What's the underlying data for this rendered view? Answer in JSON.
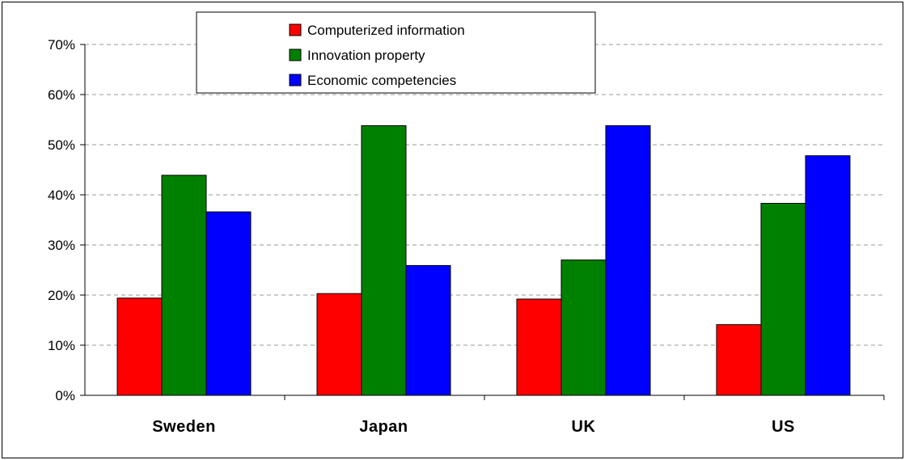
{
  "chart_data": {
    "type": "bar",
    "categories": [
      "Sweden",
      "Japan",
      "UK",
      "US"
    ],
    "series": [
      {
        "name": "Computerized information",
        "color": "#ff0000",
        "values": [
          19.4,
          20.3,
          19.2,
          14.1
        ]
      },
      {
        "name": "Innovation property",
        "color": "#008000",
        "values": [
          43.9,
          53.8,
          27.0,
          38.3
        ]
      },
      {
        "name": "Economic competencies",
        "color": "#0000ff",
        "values": [
          36.6,
          25.9,
          53.8,
          47.8
        ]
      }
    ],
    "ylim": [
      0,
      70
    ],
    "yticks": [
      "0%",
      "10%",
      "20%",
      "30%",
      "40%",
      "50%",
      "60%",
      "70%"
    ],
    "grid": "horizontal dashed",
    "legend_position": "top"
  }
}
